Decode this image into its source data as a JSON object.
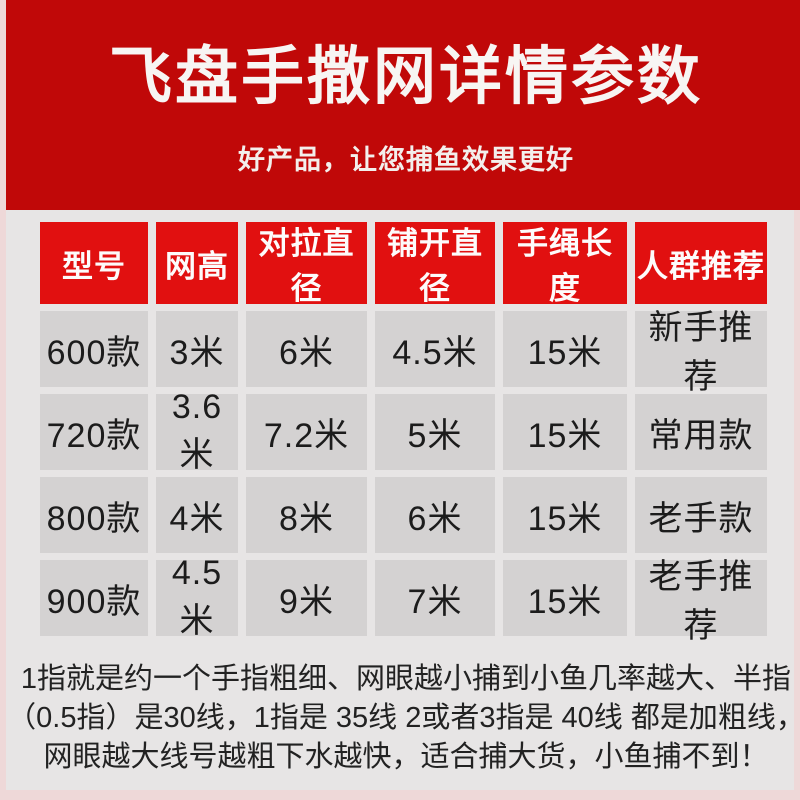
{
  "banner": {
    "title": "飞盘手撒网详情参数",
    "subtitle": "好产品，让您捕鱼效果更好"
  },
  "table": {
    "headers": [
      "型号",
      "网高",
      "对拉直径",
      "铺开直径",
      "手绳长度",
      "人群推荐"
    ],
    "rows": [
      [
        "600款",
        "3米",
        "6米",
        "4.5米",
        "15米",
        "新手推荐"
      ],
      [
        "720款",
        "3.6米",
        "7.2米",
        "5米",
        "15米",
        "常用款"
      ],
      [
        "800款",
        "4米",
        "8米",
        "6米",
        "15米",
        "老手款"
      ],
      [
        "900款",
        "4.5米",
        "9米",
        "7米",
        "15米",
        "老手推荐"
      ]
    ]
  },
  "footnote": {
    "lines": [
      "1指就是约一个手指粗细、网眼越小捕到小鱼几率越大、半指",
      "（0.5指）是30线，1指是 35线 2或者3指是 40线  都是加粗线，",
      "网眼越大线号越粗下水越快，适合捕大货，小鱼捕不到！"
    ]
  },
  "colors": {
    "banner_red": "#c00808",
    "header_red": "#e11010",
    "cell_gray": "#d4d2d2",
    "page_gray": "#e7e5e5",
    "frame_pink": "#eed8d8",
    "text_dark": "#1c1c1c",
    "text_white": "#ffffff"
  }
}
